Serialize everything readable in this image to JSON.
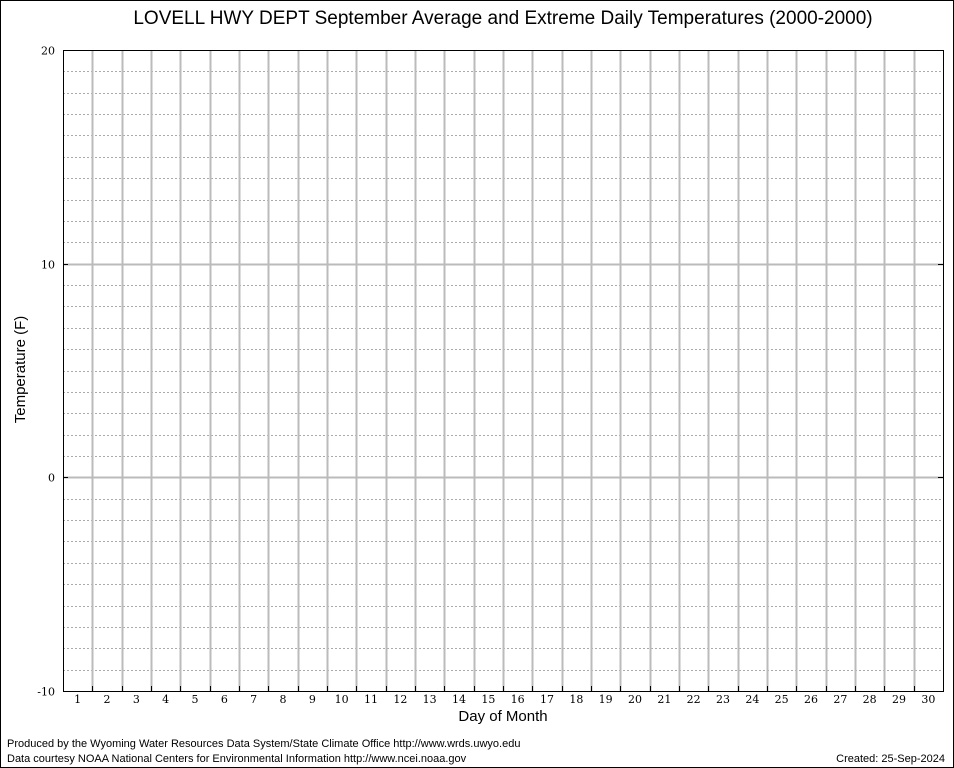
{
  "chart_data": {
    "type": "line",
    "title": "LOVELL HWY DEPT September Average and Extreme Daily Temperatures (2000-2000)",
    "xlabel": "Day of Month",
    "ylabel": "Temperature (F)",
    "x": [
      1,
      2,
      3,
      4,
      5,
      6,
      7,
      8,
      9,
      10,
      11,
      12,
      13,
      14,
      15,
      16,
      17,
      18,
      19,
      20,
      21,
      22,
      23,
      24,
      25,
      26,
      27,
      28,
      29,
      30
    ],
    "x_tick_labels": [
      "1",
      "2",
      "3",
      "4",
      "5",
      "6",
      "7",
      "8",
      "9",
      "10",
      "11",
      "12",
      "13",
      "14",
      "15",
      "16",
      "17",
      "18",
      "19",
      "20",
      "21",
      "22",
      "23",
      "24",
      "25",
      "26",
      "27",
      "28",
      "29",
      "30"
    ],
    "xlim": [
      0.5,
      30.5
    ],
    "ylim": [
      -10,
      20
    ],
    "y_ticks": [
      -10,
      0,
      10,
      20
    ],
    "y_tick_labels": [
      "-10",
      "0",
      "10",
      "20"
    ],
    "y_minor_step": 1,
    "series": [],
    "grid": true,
    "colors": {
      "major_grid": "#bbbbbb",
      "minor_grid": "#aaaaaa",
      "axes": "#000000"
    }
  },
  "footer": {
    "credit_line_1": "Produced by the Wyoming Water Resources Data System/State Climate Office http://www.wrds.uwyo.edu",
    "credit_line_2": "Data courtesy NOAA National Centers for Environmental Information http://www.ncei.noaa.gov",
    "created": "Created:  25-Sep-2024"
  }
}
